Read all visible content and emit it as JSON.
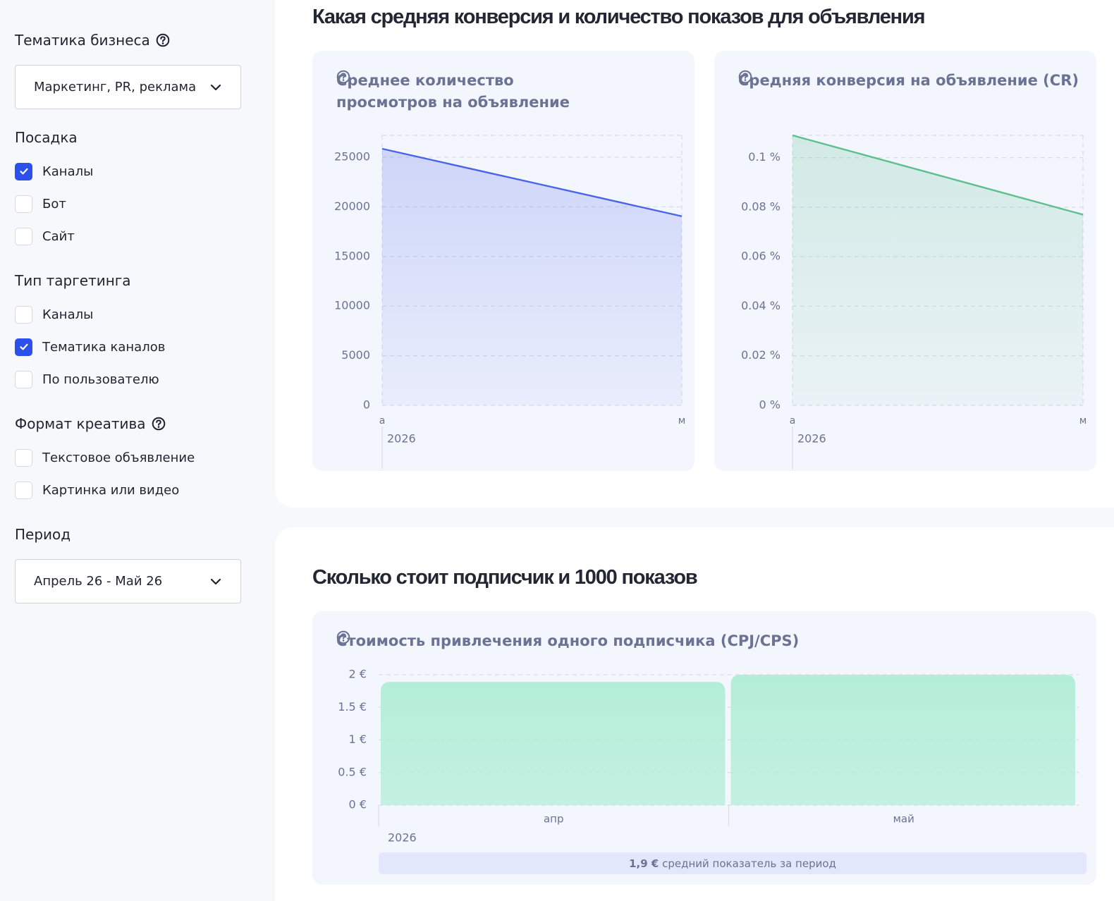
{
  "sidebar": {
    "groups": [
      {
        "title": "Тематика бизнеса",
        "help": true,
        "select": "Маркетинг, PR, реклама"
      },
      {
        "title": "Посадка",
        "options": [
          {
            "label": "Каналы",
            "checked": true
          },
          {
            "label": "Бот",
            "checked": false
          },
          {
            "label": "Сайт",
            "checked": false
          }
        ]
      },
      {
        "title": "Тип таргетинга",
        "options": [
          {
            "label": "Каналы",
            "checked": false
          },
          {
            "label": "Тематика каналов",
            "checked": true
          },
          {
            "label": "По пользователю",
            "checked": false
          }
        ]
      },
      {
        "title": "Формат креатива",
        "help": true,
        "options": [
          {
            "label": "Текстовое объявление",
            "checked": false
          },
          {
            "label": "Картинка или видео",
            "checked": false
          }
        ]
      },
      {
        "title": "Период",
        "select": "Апрель 26 - Май 26"
      }
    ]
  },
  "sections": [
    {
      "title": "Какая средняя конверсия и количество показов для объявления"
    },
    {
      "title": "Сколько стоит подписчик и 1000 показов"
    }
  ],
  "chart_data": [
    {
      "type": "area",
      "title": "Среднее количество просмотров на объявление",
      "help": true,
      "categories": [
        "а",
        "м"
      ],
      "year": "2026",
      "series": [
        {
          "color": "#4a63e8",
          "values": [
            25850,
            19050
          ]
        }
      ],
      "ylim": [
        0,
        27200
      ],
      "yticks": [
        0,
        5000,
        10000,
        15000,
        20000,
        25000
      ],
      "grid": true
    },
    {
      "type": "area",
      "title": "Средняя конверсия на объявление (CR)",
      "help": true,
      "categories": [
        "а",
        "м"
      ],
      "year": "2026",
      "series": [
        {
          "color": "#5cbf8e",
          "values": [
            0.109,
            0.077
          ]
        }
      ],
      "ylim": [
        0,
        0.109
      ],
      "yticks": [
        {
          "value": 0,
          "label": "0 %"
        },
        {
          "value": 0.02,
          "label": "0.02 %"
        },
        {
          "value": 0.04,
          "label": "0.04 %"
        },
        {
          "value": 0.06,
          "label": "0.06 %"
        },
        {
          "value": 0.08,
          "label": "0.08 %"
        },
        {
          "value": 0.1,
          "label": "0.1 %"
        }
      ],
      "grid": true
    },
    {
      "type": "bar",
      "title": "Стоимость привлечения одного подписчика (CPJ/CPS)",
      "help": true,
      "categories": [
        "апр",
        "май"
      ],
      "year": "2026",
      "series": [
        {
          "color": "#b4eed8",
          "values": [
            1.89,
            2.0
          ]
        }
      ],
      "ylim": [
        0,
        2
      ],
      "yticks": [
        {
          "value": 0,
          "label": "0 €"
        },
        {
          "value": 0.5,
          "label": "0.5 €"
        },
        {
          "value": 1,
          "label": "1 €"
        },
        {
          "value": 1.5,
          "label": "1.5 €"
        },
        {
          "value": 2,
          "label": "2 €"
        }
      ],
      "grid": true,
      "summary": {
        "value": "1,9 €",
        "text": "средний показатель за период"
      }
    }
  ]
}
